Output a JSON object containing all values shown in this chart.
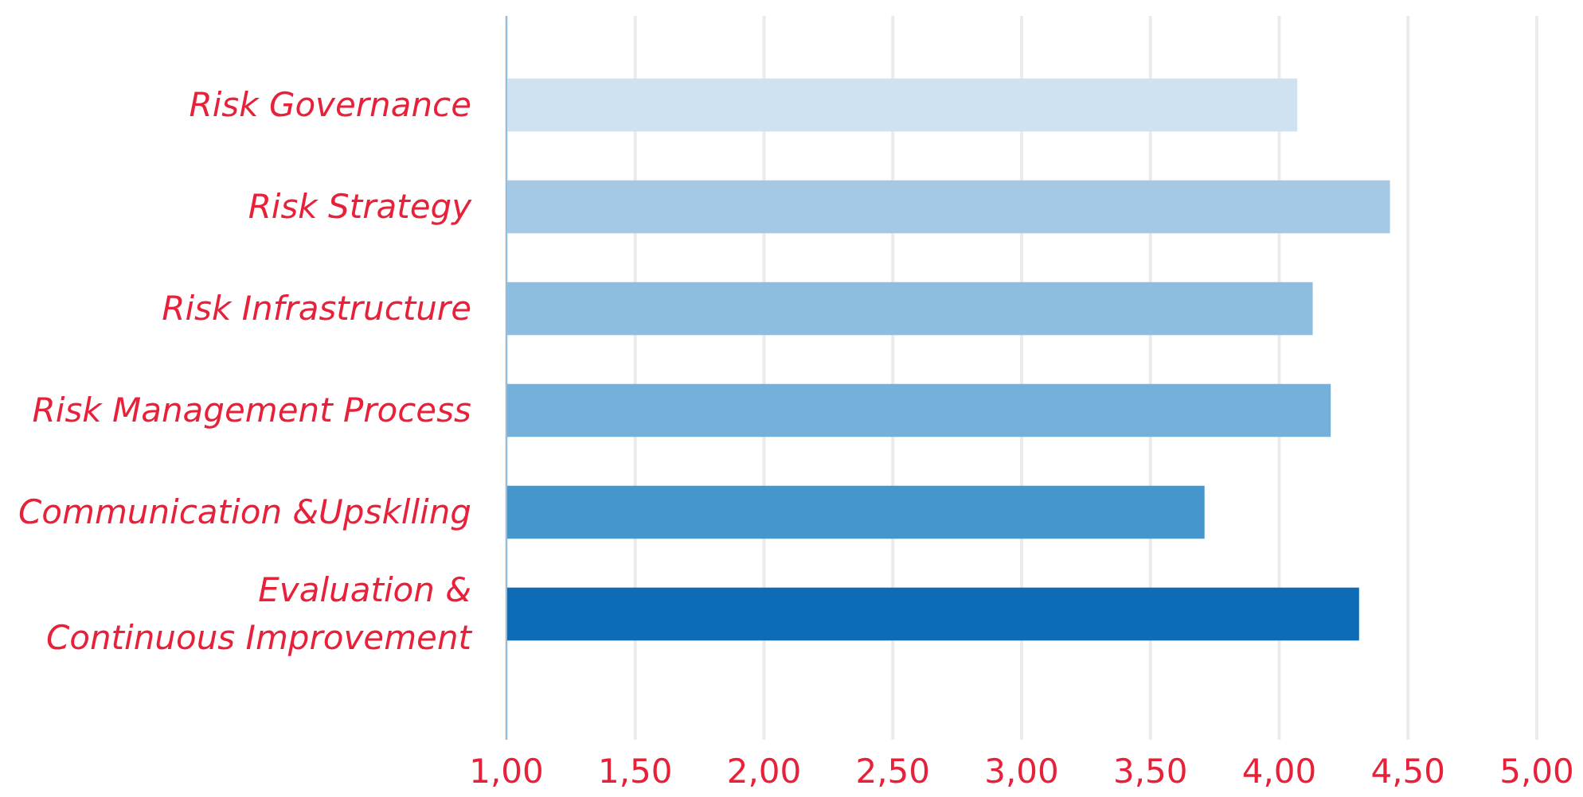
{
  "chart_data": {
    "type": "bar",
    "orientation": "horizontal",
    "categories": [
      "Risk Governance",
      "Risk Strategy",
      "Risk Infrastructure",
      "Risk Management Process",
      "Communication &Upsklling",
      "Evaluation &\nContinuous Improvement"
    ],
    "values": [
      4.07,
      4.43,
      4.13,
      4.2,
      3.71,
      4.31
    ],
    "colors": [
      "#cfe2f1",
      "#a5c9e4",
      "#8dbddf",
      "#74b0d9",
      "#4596cc",
      "#0d6cb5"
    ],
    "xlim": [
      1,
      5
    ],
    "xticks": [
      {
        "value": 1,
        "label": "1,00"
      },
      {
        "value": 1.5,
        "label": "1,50"
      },
      {
        "value": 2,
        "label": "2,00"
      },
      {
        "value": 2.5,
        "label": "2,50"
      },
      {
        "value": 3,
        "label": "3,00"
      },
      {
        "value": 3.5,
        "label": "3,50"
      },
      {
        "value": 4,
        "label": "4,00"
      },
      {
        "value": 4.5,
        "label": "4,50"
      },
      {
        "value": 5,
        "label": "5,00"
      }
    ],
    "grid": "x"
  }
}
